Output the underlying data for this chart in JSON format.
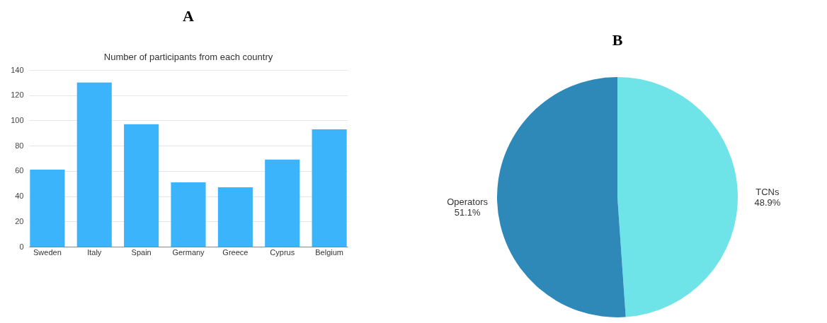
{
  "chart_data": [
    {
      "type": "bar",
      "title": "A",
      "subtitle": "Number of participants from each country",
      "categories": [
        "Sweden",
        "Italy",
        "Spain",
        "Germany",
        "Greece",
        "Cyprus",
        "Belgium"
      ],
      "values": [
        61,
        130,
        97,
        51,
        47,
        69,
        93
      ],
      "color": "#3bb4fb",
      "ylim": [
        0,
        140
      ],
      "yticks": [
        0,
        20,
        40,
        60,
        80,
        100,
        120,
        140
      ],
      "grid": "y"
    },
    {
      "type": "pie",
      "title": "B",
      "categories": [
        "TCNs",
        "Operators"
      ],
      "values": [
        48.9,
        51.1
      ],
      "colors": [
        "#6ee3e8",
        "#2e88b8"
      ],
      "value_labels": [
        "48.9%",
        "51.1%"
      ]
    }
  ]
}
